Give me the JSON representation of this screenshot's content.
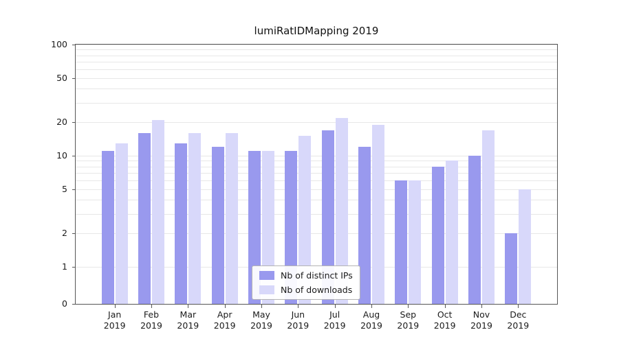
{
  "chart_data": {
    "type": "bar",
    "title": "lumiRatIDMapping 2019",
    "categories": [
      "Jan",
      "Feb",
      "Mar",
      "Apr",
      "May",
      "Jun",
      "Jul",
      "Aug",
      "Sep",
      "Oct",
      "Nov",
      "Dec"
    ],
    "year_label": "2019",
    "series": [
      {
        "name": "Nb of distinct IPs",
        "color": "#9999ee",
        "values": [
          11,
          16,
          13,
          12,
          11,
          11,
          17,
          12,
          6,
          8,
          10,
          2
        ]
      },
      {
        "name": "Nb of downloads",
        "color": "#d8d8fa",
        "values": [
          13,
          21,
          16,
          16,
          11,
          15,
          22,
          19,
          6,
          9,
          17,
          5
        ]
      }
    ],
    "xlabel": "",
    "ylabel": "",
    "y_axis": {
      "scale": "symlog",
      "ylim": [
        0,
        100
      ],
      "ticks": [
        0,
        1,
        2,
        5,
        10,
        20,
        50,
        100
      ],
      "tick_labels": [
        "0",
        "1",
        "2",
        "5",
        "10",
        "20",
        "50",
        "100"
      ],
      "gridlines": [
        1,
        2,
        3,
        4,
        5,
        6,
        7,
        8,
        9,
        10,
        20,
        30,
        40,
        50,
        60,
        70,
        80,
        90,
        100
      ]
    },
    "grid": true,
    "legend_position": "lower center",
    "background_color": "#ffffff",
    "gridline_color": "#e7e7e7"
  }
}
